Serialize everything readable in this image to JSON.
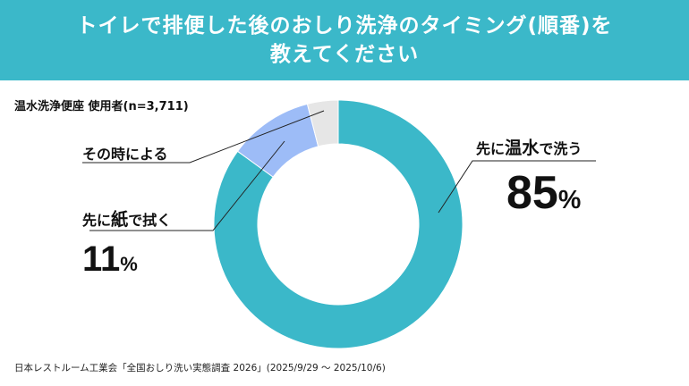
{
  "title": {
    "line1": "トイレで排便した後のおしり洗浄のタイミング(順番)を",
    "line2": "教えてください"
  },
  "sample_note": "温水洗浄便座 使用者(n=3,711)",
  "source": "日本レストルーム工業会「全国おしり洗い実態調査 2026」(2025/9/29 ～ 2025/10/6)",
  "colors": {
    "header": "#3bb8c9",
    "water": "#3bb8c9",
    "paper": "#9dbcf7",
    "other": "#e6e6e6"
  },
  "chart_data": {
    "type": "pie",
    "variant": "donut",
    "title": "トイレで排便した後のおしり洗浄のタイミング(順番)を教えてください",
    "unit": "%",
    "slices": [
      {
        "label_pre": "先に",
        "label_em": "温水",
        "label_post": "で洗う",
        "value": 85,
        "color": "#3bb8c9"
      },
      {
        "label_pre": "先に",
        "label_em": "紙",
        "label_post": "で拭く",
        "value": 11,
        "color": "#9dbcf7"
      },
      {
        "label_pre": "その時による",
        "label_em": "",
        "label_post": "",
        "value": 4,
        "color": "#e6e6e6"
      }
    ]
  }
}
